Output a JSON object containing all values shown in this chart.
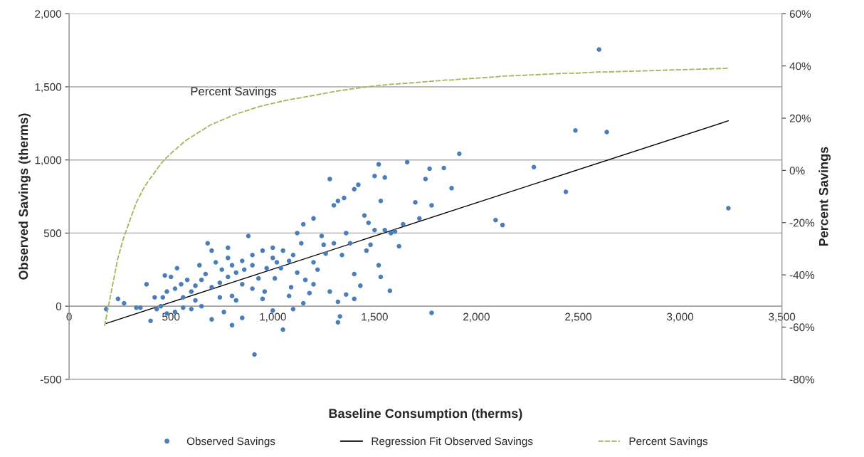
{
  "chart_data": {
    "type": "scatter",
    "xlabel": "Baseline Consumption (therms)",
    "ylabel": "Observed Savings (therms)",
    "y2label": "Percent Savings",
    "xlim": [
      0,
      3500
    ],
    "xticks": [
      0,
      {
        "value": 500,
        "label": "500"
      },
      {
        "value": 1000,
        "label": "1,000"
      },
      {
        "value": 1500,
        "label": "1,500"
      },
      {
        "value": 2000,
        "label": "2,000"
      },
      {
        "value": 2500,
        "label": "2,500"
      },
      {
        "value": 3000,
        "label": "3,000"
      },
      {
        "value": 3500,
        "label": "3,500"
      }
    ],
    "ylim": [
      -500,
      2000
    ],
    "yticks": [
      {
        "value": -500,
        "label": "-500"
      },
      0,
      {
        "value": 500,
        "label": "500"
      },
      {
        "value": 1000,
        "label": "1,000"
      },
      {
        "value": 1500,
        "label": "1,500"
      },
      {
        "value": 2000,
        "label": "2,000"
      }
    ],
    "y2lim": [
      -80,
      60
    ],
    "y2ticks": [
      {
        "value": -80,
        "label": "-80%"
      },
      {
        "value": -60,
        "label": "-60%"
      },
      {
        "value": -40,
        "label": "-40%"
      },
      {
        "value": -20,
        "label": "-20%"
      },
      {
        "value": 0,
        "label": "0%"
      },
      {
        "value": 20,
        "label": "20%"
      },
      {
        "value": 40,
        "label": "40%"
      },
      {
        "value": 60,
        "label": "60%"
      }
    ],
    "grid": "y",
    "legend": "bottom",
    "annotations": [
      "Percent Savings"
    ],
    "series": [
      {
        "name": "Observed Savings",
        "marker": "circle",
        "color": "#4a7ebb",
        "x": [
          2602,
          2486,
          2640,
          3237,
          2439,
          2282,
          2094,
          2128,
          1916,
          1878,
          1840,
          1770,
          1750,
          1780,
          1660,
          1720,
          1700,
          1640,
          1620,
          1580,
          1575,
          1520,
          1500,
          1550,
          1530,
          1520,
          1780,
          1330,
          1320,
          1050,
          910,
          800,
          182,
          240,
          270,
          330,
          380,
          420,
          470,
          500,
          530,
          550,
          600,
          650,
          680,
          700,
          720,
          750,
          780,
          800,
          850,
          880,
          900,
          950,
          1000,
          1020,
          1050,
          1100,
          1120,
          1150,
          1200,
          1240,
          1280,
          1300,
          1320,
          1350,
          1400,
          1420,
          1450,
          1470,
          1360,
          1380,
          1250,
          1200,
          1180,
          1150,
          1100,
          1080,
          1000,
          950,
          900,
          850,
          820,
          760,
          700,
          650,
          600,
          560,
          520,
          480,
          450,
          430,
          400,
          350,
          520,
          580,
          620,
          670,
          700,
          740,
          780,
          820,
          860,
          900,
          930,
          970,
          1000,
          1040,
          1080,
          1120,
          1160,
          1200,
          1260,
          1300,
          1340,
          1400,
          1430,
          1460,
          1480,
          1500,
          1550,
          1530,
          1600,
          1280,
          1320,
          1400,
          1360,
          1090,
          960,
          800,
          740,
          620,
          560,
          460,
          480,
          640,
          780,
          850,
          1010,
          1140,
          1220
        ],
        "values": [
          1755,
          1202,
          1191,
          670,
          782,
          951,
          589,
          555,
          1042,
          807,
          945,
          940,
          870,
          690,
          985,
          600,
          710,
          560,
          410,
          500,
          105,
          970,
          890,
          880,
          720,
          280,
          -45,
          -70,
          -110,
          -160,
          -330,
          -130,
          -20,
          50,
          20,
          -10,
          150,
          60,
          210,
          200,
          260,
          150,
          100,
          180,
          430,
          380,
          300,
          250,
          400,
          280,
          310,
          480,
          350,
          380,
          400,
          300,
          380,
          350,
          500,
          560,
          600,
          480,
          870,
          690,
          720,
          740,
          800,
          830,
          620,
          570,
          500,
          430,
          420,
          150,
          90,
          20,
          -20,
          70,
          -30,
          50,
          120,
          -80,
          40,
          -40,
          -90,
          0,
          -20,
          60,
          -40,
          -50,
          0,
          -20,
          -100,
          -10,
          120,
          180,
          140,
          220,
          130,
          160,
          200,
          230,
          250,
          280,
          190,
          260,
          330,
          260,
          310,
          230,
          180,
          300,
          360,
          430,
          350,
          220,
          140,
          380,
          420,
          520,
          520,
          200,
          510,
          100,
          30,
          50,
          80,
          130,
          100,
          70,
          60,
          40,
          -10,
          60,
          100,
          280,
          330,
          150,
          190,
          430,
          250
        ]
      },
      {
        "name": "Regression Fit Observed Savings",
        "type": "line",
        "color": "#000000",
        "line_style": "solid",
        "x": [
          182,
          3237
        ],
        "values": [
          -118,
          1268
        ]
      },
      {
        "name": "Percent Savings",
        "type": "line",
        "axis": "y2",
        "color": "#9bbb59",
        "line_style": "dashed",
        "x": [
          174,
          237,
          264,
          320,
          332,
          369,
          393,
          409,
          449,
          473,
          510,
          572,
          694,
          817,
          940,
          1063,
          1185,
          1309,
          1432,
          1555,
          1678,
          1850,
          1878,
          1916,
          2094,
          2128,
          2282,
          2438,
          2486,
          2602,
          2640,
          3237
        ],
        "values": [
          -59.6,
          -34.5,
          -26.7,
          -14.4,
          -12,
          -6.4,
          -3.6,
          -2,
          2.4,
          4.5,
          7.2,
          11.4,
          17.4,
          21.5,
          24.6,
          26.8,
          28.5,
          30.3,
          31.7,
          32.8,
          33.5,
          34.6,
          34.6,
          34.9,
          35.8,
          36.1,
          36.6,
          37.2,
          37.2,
          37.7,
          37.7,
          39.1
        ]
      }
    ]
  }
}
